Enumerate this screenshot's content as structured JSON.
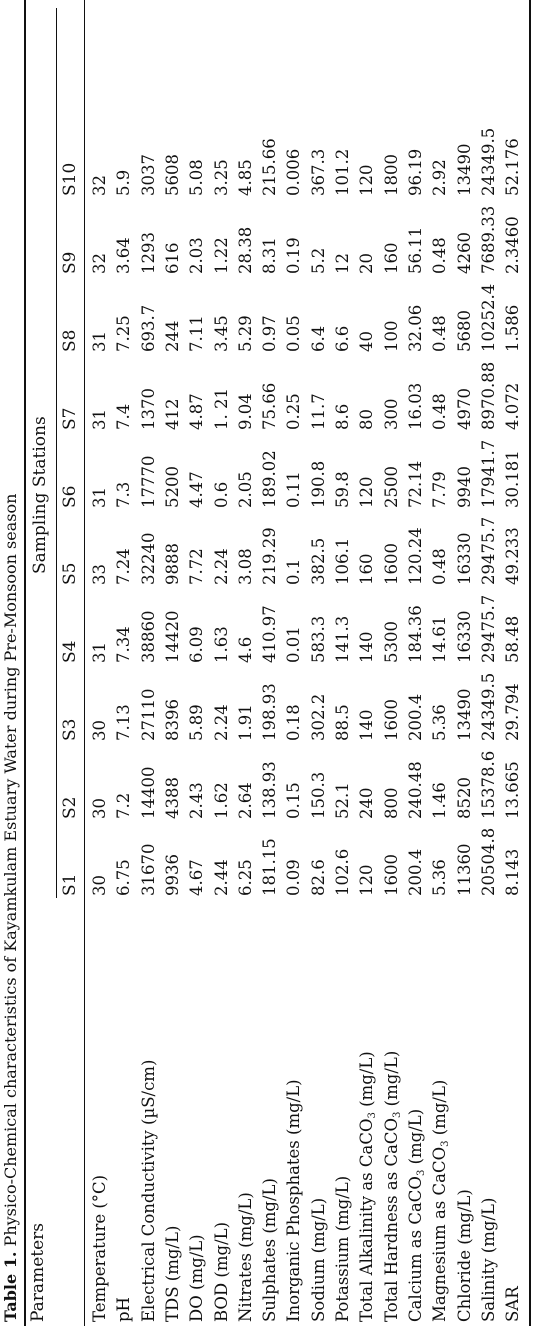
{
  "caption": {
    "label": "Table 1.",
    "text": "Physico-Chemical characteristics of Kayamkulam Estuary Water during Pre-Monsoon season"
  },
  "header": {
    "parameters": "Parameters",
    "group": "Sampling Stations",
    "stations": [
      "S1",
      "S2",
      "S3",
      "S4",
      "S5",
      "S6",
      "S7",
      "S8",
      "S9",
      "S10"
    ]
  },
  "rows": [
    {
      "param": "Temperature (°C)",
      "values": [
        "30",
        "30",
        "30",
        "31",
        "33",
        "31",
        "31",
        "31",
        "32",
        "32"
      ]
    },
    {
      "param": "pH",
      "values": [
        "6.75",
        "7.2",
        "7.13",
        "7.34",
        "7.24",
        "7.3",
        "7.4",
        "7.25",
        "3.64",
        "5.9"
      ]
    },
    {
      "param": "Electrical Conductivity (µS/cm)",
      "values": [
        "31670",
        "14400",
        "27110",
        "38860",
        "32240",
        "17770",
        "1370",
        "693.7",
        "1293",
        "3037"
      ]
    },
    {
      "param": "TDS (mg/L)",
      "values": [
        "9936",
        "4388",
        "8396",
        "14420",
        "9888",
        "5200",
        "412",
        "244",
        "616",
        "5608"
      ]
    },
    {
      "param": "DO (mg/L)",
      "values": [
        "4.67",
        "2.43",
        "5.89",
        "6.09",
        "7.72",
        "4.47",
        "4.87",
        "7.11",
        "2.03",
        "5.08"
      ]
    },
    {
      "param": "BOD (mg/L)",
      "values": [
        "2.44",
        "1.62",
        "2.24",
        "1.63",
        "2.24",
        "0.6",
        "1. 21",
        "3.45",
        "1.22",
        "3.25"
      ]
    },
    {
      "param": "Nitrates (mg/L)",
      "values": [
        "6.25",
        "2.64",
        "1.91",
        "4.6",
        "3.08",
        "2.05",
        "9.04",
        "5.29",
        "28.38",
        "4.85"
      ]
    },
    {
      "param": "Sulphates (mg/L)",
      "values": [
        "181.15",
        "138.93",
        "198.93",
        "410.97",
        "219.29",
        "189.02",
        "75.66",
        "0.97",
        "8.31",
        "215.66"
      ]
    },
    {
      "param": "Inorganic Phosphates (mg/L)",
      "values": [
        "0.09",
        "0.15",
        "0.18",
        "0.01",
        "0.1",
        "0.11",
        "0.25",
        "0.05",
        "0.19",
        "0.006"
      ]
    },
    {
      "param": "Sodium (mg/L)",
      "values": [
        "82.6",
        "150.3",
        "302.2",
        "583.3",
        "382.5",
        "190.8",
        "11.7",
        "6.4",
        "5.2",
        "367.3"
      ]
    },
    {
      "param": "Potassium (mg/L)",
      "values": [
        "102.6",
        "52.1",
        "88.5",
        "141.3",
        "106.1",
        "59.8",
        "8.6",
        "6.6",
        "12",
        "101.2"
      ]
    },
    {
      "param": "Total Alkalinity as CaCO3 (mg/L)",
      "pre": "Total Alkalinity as CaCO",
      "sub": "3",
      "post": " (mg/L)",
      "values": [
        "120",
        "240",
        "140",
        "140",
        "160",
        "120",
        "80",
        "40",
        "20",
        "120"
      ]
    },
    {
      "param": "Total Hardness as CaCO3 (mg/L)",
      "pre": "Total Hardness as CaCO",
      "sub": "3",
      "post": " (mg/L)",
      "values": [
        "1600",
        "800",
        "1600",
        "5300",
        "1600",
        "2500",
        "300",
        "100",
        "160",
        "1800"
      ]
    },
    {
      "param": "Calcium as CaCO3 (mg/L)",
      "pre": "Calcium as CaCO",
      "sub": "3",
      "post": " (mg/L)",
      "values": [
        "200.4",
        "240.48",
        "200.4",
        "184.36",
        "120.24",
        "72.14",
        "16.03",
        "32.06",
        "56.11",
        "96.19"
      ]
    },
    {
      "param": "Magnesium as CaCO3 (mg/L)",
      "pre": "Magnesium as CaCO",
      "sub": "3",
      "post": " (mg/L)",
      "values": [
        "5.36",
        "1.46",
        "5.36",
        "14.61",
        "0.48",
        "7.79",
        "0.48",
        "0.48",
        "0.48",
        "2.92"
      ]
    },
    {
      "param": "Chloride (mg/L)",
      "values": [
        "11360",
        "8520",
        "13490",
        "16330",
        "16330",
        "9940",
        "4970",
        "5680",
        "4260",
        "13490"
      ]
    },
    {
      "param": "Salinity (mg/L)",
      "values": [
        "20504.8",
        "15378.6",
        "24349.5",
        "29475.7",
        "29475.7",
        "17941.7",
        "8970.88",
        "10252.4",
        "7689.33",
        "24349.5"
      ]
    },
    {
      "param": "SAR",
      "values": [
        "8.143",
        "13.665",
        "29.794",
        "58.48",
        "49.233",
        "30.181",
        "4.072",
        "1.586",
        "2.3460",
        "52.176"
      ]
    }
  ]
}
